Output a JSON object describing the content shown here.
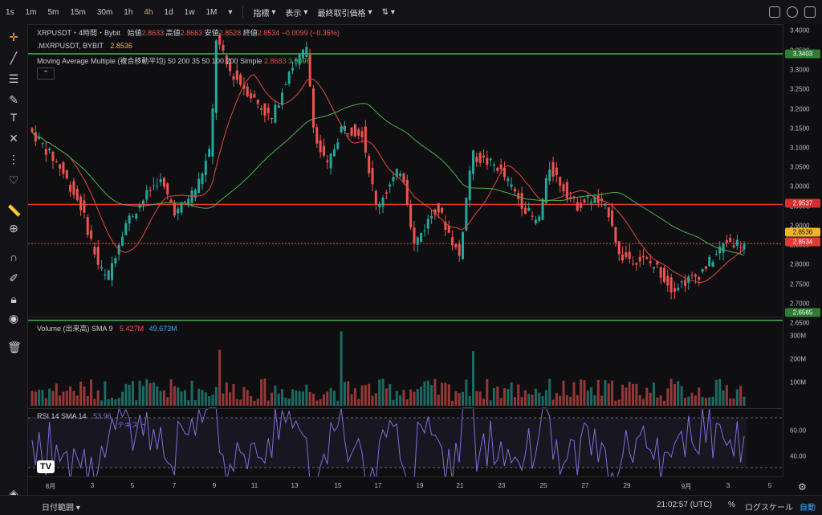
{
  "topbar": {
    "timeframes": [
      "1s",
      "1m",
      "5m",
      "15m",
      "30m",
      "1h",
      "4h",
      "1d",
      "1w",
      "1M"
    ],
    "active_timeframe": "4h",
    "menus": [
      "指標",
      "表示",
      "最終取引価格"
    ]
  },
  "legend": {
    "symbol": "XRPUSDT・4時間・Bybit",
    "open_label": "始値",
    "open": "2.8633",
    "high_label": "高値",
    "high": "2.8663",
    "low_label": "安値",
    "low": "2.8528",
    "close_label": "終値",
    "close": "2.8534",
    "change": "−0.0099 (−0.35%)",
    "compare_symbol": ".MXRPUSDT, BYBIT",
    "compare_value": "2.8536",
    "ma_label": "Moving Average Multiple (複合移動平均) 50 200 35 50 100 200 Simple",
    "ma1": "2.8683",
    "ma2": "3.0096",
    "volume_label": "Volume (出来高) SMA 9",
    "vol1": "5.427M",
    "vol2": "49.673M",
    "rsi_label": "RSI 14 SMA 14",
    "rsi_value": "53.96",
    "rsi_note": "テキスト"
  },
  "price_axis": {
    "ticks": [
      "3.4000",
      "3.3500",
      "3.3000",
      "3.2500",
      "3.2000",
      "3.1500",
      "3.1000",
      "3.0500",
      "3.0000",
      "2.9500",
      "2.9000",
      "2.8500",
      "2.8000",
      "2.7500",
      "2.7000",
      "2.6500"
    ],
    "tags": {
      "green_top": "3.3403",
      "red_line": "2.9537",
      "yellow": "2.8536",
      "last": "2.8534",
      "green_bottom": "2.6565"
    }
  },
  "volume_axis": [
    "300M",
    "200M",
    "100M"
  ],
  "rsi_axis": [
    "60.00",
    "40.00"
  ],
  "x_axis": [
    "8月",
    "3",
    "5",
    "7",
    "9",
    "11",
    "13",
    "15",
    "17",
    "19",
    "21",
    "23",
    "25",
    "27",
    "29",
    "9月",
    "3",
    "5"
  ],
  "bottombar": {
    "date_range": "日付範囲",
    "time": "21:02:57 (UTC)",
    "percent": "%",
    "log": "ログスケール",
    "auto": "自動"
  },
  "colors": {
    "up": "#26a69a",
    "down": "#ef5350",
    "ma_red": "#e0483f",
    "ma_green": "#4caf50",
    "hline_green": "#4caf50",
    "hline_red": "#e53935",
    "rsi": "#7e6fd8"
  }
}
